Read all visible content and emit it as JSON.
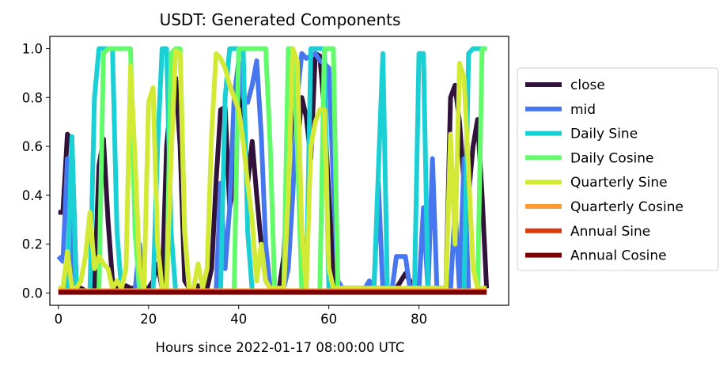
{
  "chart_data": {
    "type": "line",
    "title": "USDT: Generated Components",
    "xlabel": "Hours since 2022-01-17 08:00:00 UTC",
    "ylabel": "",
    "xlim": [
      -1.9,
      99.9
    ],
    "ylim": [
      -0.05,
      1.05
    ],
    "x_ticks": [
      0,
      20,
      40,
      60,
      80
    ],
    "y_ticks": [
      0.0,
      0.2,
      0.4,
      0.6,
      0.8,
      1.0
    ],
    "x_tick_labels": [
      "0",
      "20",
      "40",
      "60",
      "80"
    ],
    "y_tick_labels": [
      "0.0",
      "0.2",
      "0.4",
      "0.6",
      "0.8",
      "1.0"
    ],
    "grid": false,
    "legend_position": "outside-right",
    "x": [
      0,
      1,
      2,
      3,
      4,
      5,
      6,
      7,
      8,
      9,
      10,
      11,
      12,
      13,
      14,
      15,
      16,
      17,
      18,
      19,
      20,
      21,
      22,
      23,
      24,
      25,
      26,
      27,
      28,
      29,
      30,
      31,
      32,
      33,
      34,
      35,
      36,
      37,
      38,
      39,
      40,
      41,
      42,
      43,
      44,
      45,
      46,
      47,
      48,
      49,
      50,
      51,
      52,
      53,
      54,
      55,
      56,
      57,
      58,
      59,
      60,
      61,
      62,
      63,
      64,
      65,
      66,
      67,
      68,
      69,
      70,
      71,
      72,
      73,
      74,
      75,
      76,
      77,
      78,
      79,
      80,
      81,
      82,
      83,
      84,
      85,
      86,
      87,
      88,
      89,
      90,
      91,
      92,
      93,
      94,
      95
    ],
    "series": [
      {
        "name": "close",
        "color": "#30123b",
        "values": [
          0.33,
          0.33,
          0.65,
          0.62,
          0.02,
          0.02,
          0.01,
          0.01,
          0.02,
          0.52,
          0.63,
          0.3,
          0.05,
          0.02,
          0.02,
          0.03,
          0.02,
          0.02,
          0.02,
          0.02,
          0.02,
          0.05,
          0.12,
          0.02,
          0.6,
          0.8,
          0.88,
          0.6,
          0.05,
          0.02,
          0.02,
          0.03,
          0.02,
          0.02,
          0.1,
          0.46,
          0.75,
          0.76,
          0.35,
          0.45,
          0.82,
          0.75,
          0.45,
          0.62,
          0.4,
          0.2,
          0.05,
          0.02,
          0.02,
          0.02,
          0.15,
          0.5,
          0.78,
          0.6,
          0.8,
          0.72,
          0.55,
          0.98,
          0.97,
          0.75,
          0.4,
          0.1,
          0.02,
          0.02,
          0.02,
          0.02,
          0.02,
          0.02,
          0.02,
          0.02,
          0.02,
          0.02,
          0.02,
          0.02,
          0.02,
          0.02,
          0.05,
          0.08,
          0.05,
          0.02,
          0.02,
          0.02,
          0.02,
          0.02,
          0.02,
          0.02,
          0.02,
          0.8,
          0.85,
          0.7,
          0.45,
          0.4,
          0.6,
          0.71,
          0.4,
          0.02
        ]
      },
      {
        "name": "mid",
        "color": "#4777ef",
        "values": [
          0.15,
          0.13,
          0.55,
          0.01,
          0.01,
          0.01,
          0.01,
          0.01,
          0.01,
          0.01,
          0.01,
          0.01,
          0.01,
          0.01,
          0.01,
          0.01,
          0.01,
          0.01,
          0.2,
          0.01,
          0.01,
          0.01,
          0.01,
          0.01,
          0.01,
          0.01,
          0.01,
          0.01,
          0.01,
          0.01,
          0.01,
          0.01,
          0.01,
          0.01,
          0.01,
          0.01,
          0.45,
          0.1,
          0.35,
          0.8,
          0.95,
          0.8,
          0.78,
          0.85,
          0.95,
          0.65,
          0.2,
          0.02,
          0.02,
          0.02,
          0.02,
          0.1,
          0.4,
          0.8,
          0.98,
          0.96,
          0.97,
          0.98,
          0.95,
          0.94,
          0.92,
          0.45,
          0.05,
          0.02,
          0.02,
          0.02,
          0.02,
          0.02,
          0.02,
          0.05,
          0.01,
          0.45,
          0.01,
          0.01,
          0.01,
          0.15,
          0.15,
          0.15,
          0.02,
          0.02,
          0.02,
          0.35,
          0.01,
          0.55,
          0.01,
          0.01,
          0.01,
          0.01,
          0.35,
          0.01,
          0.55,
          0.01,
          0.01,
          0.01,
          0.01,
          0.01
        ]
      },
      {
        "name": "Daily Sine",
        "color": "#1bd0d5",
        "values": [
          0.01,
          0.01,
          0.01,
          0.64,
          0.01,
          0.01,
          0.01,
          0.01,
          0.8,
          1.0,
          1.0,
          1.0,
          1.0,
          0.25,
          0.01,
          0.01,
          0.01,
          0.01,
          0.01,
          0.01,
          0.01,
          0.01,
          0.6,
          1.0,
          1.0,
          0.25,
          0.01,
          0.01,
          0.01,
          0.01,
          0.01,
          0.01,
          0.01,
          0.01,
          0.01,
          0.01,
          0.01,
          0.8,
          1.0,
          1.0,
          1.0,
          1.0,
          0.25,
          0.01,
          0.01,
          0.01,
          0.01,
          0.01,
          0.01,
          0.01,
          0.01,
          0.01,
          0.01,
          0.01,
          0.01,
          0.01,
          1.0,
          1.0,
          1.0,
          1.0,
          0.01,
          0.01,
          0.01,
          0.01,
          0.01,
          0.01,
          0.01,
          0.01,
          0.01,
          0.01,
          0.01,
          0.5,
          0.98,
          0.01,
          0.01,
          0.01,
          0.01,
          0.01,
          0.01,
          0.01,
          0.98,
          0.98,
          0.01,
          0.01,
          0.01,
          0.01,
          0.01,
          0.01,
          0.01,
          0.01,
          0.01,
          0.98,
          1.0,
          1.0,
          1.0,
          1.0
        ]
      },
      {
        "name": "Daily Cosine",
        "color": "#62fc6b",
        "values": [
          0.01,
          0.01,
          0.01,
          0.01,
          0.01,
          0.01,
          0.01,
          0.01,
          0.01,
          0.01,
          0.98,
          1.0,
          1.0,
          1.0,
          1.0,
          1.0,
          1.0,
          0.25,
          0.01,
          0.01,
          0.01,
          0.01,
          0.01,
          0.01,
          0.01,
          0.98,
          1.0,
          1.0,
          0.25,
          0.01,
          0.01,
          0.01,
          0.01,
          0.01,
          0.01,
          0.01,
          0.01,
          0.01,
          0.01,
          0.01,
          1.0,
          1.0,
          1.0,
          1.0,
          1.0,
          1.0,
          1.0,
          0.6,
          0.01,
          0.01,
          0.01,
          1.0,
          1.0,
          0.6,
          0.01,
          0.01,
          0.01,
          0.01,
          0.01,
          1.0,
          1.0,
          1.0,
          0.01,
          0.01,
          0.01,
          0.01,
          0.01,
          0.01,
          0.01,
          0.01,
          0.01,
          0.01,
          0.01,
          0.01,
          0.01,
          0.01,
          0.01,
          0.01,
          0.01,
          0.01,
          0.01,
          0.01,
          0.01,
          0.01,
          0.01,
          0.01,
          0.01,
          0.01,
          0.01,
          0.01,
          0.01,
          0.01,
          0.01,
          0.01,
          1.0,
          1.0
        ]
      },
      {
        "name": "Quarterly Sine",
        "color": "#d2e935",
        "values": [
          0.02,
          0.02,
          0.17,
          0.02,
          0.02,
          0.05,
          0.15,
          0.33,
          0.1,
          0.15,
          0.12,
          0.1,
          0.02,
          0.05,
          0.02,
          0.1,
          0.93,
          0.55,
          0.1,
          0.02,
          0.78,
          0.84,
          0.2,
          0.02,
          0.03,
          0.55,
          0.99,
          0.98,
          0.25,
          0.02,
          0.02,
          0.12,
          0.02,
          0.1,
          0.65,
          0.98,
          0.96,
          0.92,
          0.85,
          0.8,
          0.75,
          0.62,
          0.45,
          0.3,
          0.05,
          0.2,
          0.05,
          0.02,
          0.02,
          0.02,
          0.02,
          0.4,
          1.0,
          0.95,
          0.25,
          0.02,
          0.6,
          0.7,
          0.75,
          0.75,
          0.1,
          0.02,
          0.02,
          0.02,
          0.02,
          0.02,
          0.02,
          0.02,
          0.02,
          0.02,
          0.02,
          0.02,
          0.02,
          0.02,
          0.02,
          0.02,
          0.02,
          0.02,
          0.02,
          0.02,
          0.02,
          0.02,
          0.02,
          0.02,
          0.02,
          0.02,
          0.02,
          0.65,
          0.2,
          0.94,
          0.88,
          0.5,
          0.1,
          0.02,
          0.02,
          0.02
        ]
      },
      {
        "name": "Quarterly Cosine",
        "color": "#fb9b32",
        "values": [
          0.01,
          0.01,
          0.01,
          0.01,
          0.01,
          0.01,
          0.01,
          0.01,
          0.01,
          0.01,
          0.01,
          0.01,
          0.01,
          0.01,
          0.01,
          0.01,
          0.01,
          0.01,
          0.01,
          0.01,
          0.01,
          0.01,
          0.01,
          0.01,
          0.01,
          0.01,
          0.01,
          0.01,
          0.01,
          0.01,
          0.01,
          0.01,
          0.01,
          0.01,
          0.01,
          0.01,
          0.01,
          0.01,
          0.01,
          0.01,
          0.01,
          0.01,
          0.01,
          0.01,
          0.01,
          0.01,
          0.01,
          0.01,
          0.01,
          0.01,
          0.01,
          0.01,
          0.01,
          0.01,
          0.01,
          0.01,
          0.01,
          0.01,
          0.01,
          0.01,
          0.01,
          0.01,
          0.01,
          0.01,
          0.01,
          0.01,
          0.01,
          0.01,
          0.01,
          0.01,
          0.01,
          0.01,
          0.01,
          0.01,
          0.01,
          0.01,
          0.01,
          0.01,
          0.01,
          0.01,
          0.01,
          0.01,
          0.01,
          0.01,
          0.01,
          0.01,
          0.01,
          0.01,
          0.01,
          0.01,
          0.01,
          0.01,
          0.01,
          0.01,
          0.01,
          0.01
        ]
      },
      {
        "name": "Annual Sine",
        "color": "#dc3a0b",
        "values": [
          0.005,
          0.005,
          0.005,
          0.005,
          0.005,
          0.005,
          0.005,
          0.005,
          0.005,
          0.005,
          0.005,
          0.005,
          0.005,
          0.005,
          0.005,
          0.005,
          0.005,
          0.005,
          0.005,
          0.005,
          0.005,
          0.005,
          0.005,
          0.005,
          0.005,
          0.005,
          0.005,
          0.005,
          0.005,
          0.005,
          0.005,
          0.005,
          0.005,
          0.005,
          0.005,
          0.005,
          0.005,
          0.005,
          0.005,
          0.005,
          0.005,
          0.005,
          0.005,
          0.005,
          0.005,
          0.005,
          0.005,
          0.005,
          0.005,
          0.005,
          0.005,
          0.005,
          0.005,
          0.005,
          0.005,
          0.005,
          0.005,
          0.005,
          0.005,
          0.005,
          0.005,
          0.005,
          0.005,
          0.005,
          0.005,
          0.005,
          0.005,
          0.005,
          0.005,
          0.005,
          0.005,
          0.005,
          0.005,
          0.005,
          0.005,
          0.005,
          0.005,
          0.005,
          0.005,
          0.005,
          0.005,
          0.005,
          0.005,
          0.005,
          0.005,
          0.005,
          0.005,
          0.005,
          0.005,
          0.005,
          0.005,
          0.005,
          0.005,
          0.005,
          0.005,
          0.005
        ]
      },
      {
        "name": "Annual Cosine",
        "color": "#7a0403",
        "values": [
          0.003,
          0.003,
          0.003,
          0.003,
          0.003,
          0.003,
          0.003,
          0.003,
          0.003,
          0.003,
          0.003,
          0.003,
          0.003,
          0.003,
          0.003,
          0.003,
          0.003,
          0.003,
          0.003,
          0.003,
          0.003,
          0.003,
          0.003,
          0.003,
          0.003,
          0.003,
          0.003,
          0.003,
          0.003,
          0.003,
          0.003,
          0.003,
          0.003,
          0.003,
          0.003,
          0.003,
          0.003,
          0.003,
          0.003,
          0.003,
          0.003,
          0.003,
          0.003,
          0.003,
          0.003,
          0.003,
          0.003,
          0.003,
          0.003,
          0.003,
          0.003,
          0.003,
          0.003,
          0.003,
          0.003,
          0.003,
          0.003,
          0.003,
          0.003,
          0.003,
          0.003,
          0.003,
          0.003,
          0.003,
          0.003,
          0.003,
          0.003,
          0.003,
          0.003,
          0.003,
          0.003,
          0.003,
          0.003,
          0.003,
          0.003,
          0.003,
          0.003,
          0.003,
          0.003,
          0.003,
          0.003,
          0.003,
          0.003,
          0.003,
          0.003,
          0.003,
          0.003,
          0.003,
          0.003,
          0.003,
          0.003,
          0.003,
          0.003,
          0.003,
          0.003,
          0.003
        ]
      }
    ]
  }
}
